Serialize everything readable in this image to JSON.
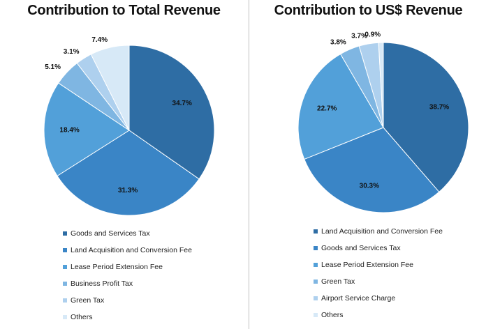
{
  "chart_data": [
    {
      "type": "pie",
      "title": "Contribution to Total Revenue",
      "slices": [
        {
          "label": "Goods and Services Tax",
          "value": 34.7,
          "value_label": "34.7%",
          "color": "#2e6da4"
        },
        {
          "label": "Land Acquisition and Conversion Fee",
          "value": 31.3,
          "value_label": "31.3%",
          "color": "#3a85c6"
        },
        {
          "label": "Lease Period Extension Fee",
          "value": 18.4,
          "value_label": "18.4%",
          "color": "#52a0d9"
        },
        {
          "label": "Business Profit Tax",
          "value": 5.1,
          "value_label": "5.1%",
          "color": "#7fb6e2"
        },
        {
          "label": "Green Tax",
          "value": 3.1,
          "value_label": "3.1%",
          "color": "#aed0ee"
        },
        {
          "label": "Others",
          "value": 7.4,
          "value_label": "7.4%",
          "color": "#d7e9f7"
        }
      ],
      "legend_position": "bottom"
    },
    {
      "type": "pie",
      "title": "Contribution to US$ Revenue",
      "slices": [
        {
          "label": "Land Acquisition and Conversion Fee",
          "value": 38.7,
          "value_label": "38.7%",
          "color": "#2e6da4"
        },
        {
          "label": "Goods and Services Tax",
          "value": 30.3,
          "value_label": "30.3%",
          "color": "#3a85c6"
        },
        {
          "label": "Lease Period Extension Fee",
          "value": 22.7,
          "value_label": "22.7%",
          "color": "#52a0d9"
        },
        {
          "label": "Green Tax",
          "value": 3.8,
          "value_label": "3.8%",
          "color": "#7fb6e2"
        },
        {
          "label": "Airport Service Charge",
          "value": 3.7,
          "value_label": "3.7%",
          "color": "#aed0ee"
        },
        {
          "label": "Others",
          "value": 0.9,
          "value_label": "0.9%",
          "color": "#d7e9f7"
        }
      ],
      "legend_position": "bottom"
    }
  ]
}
